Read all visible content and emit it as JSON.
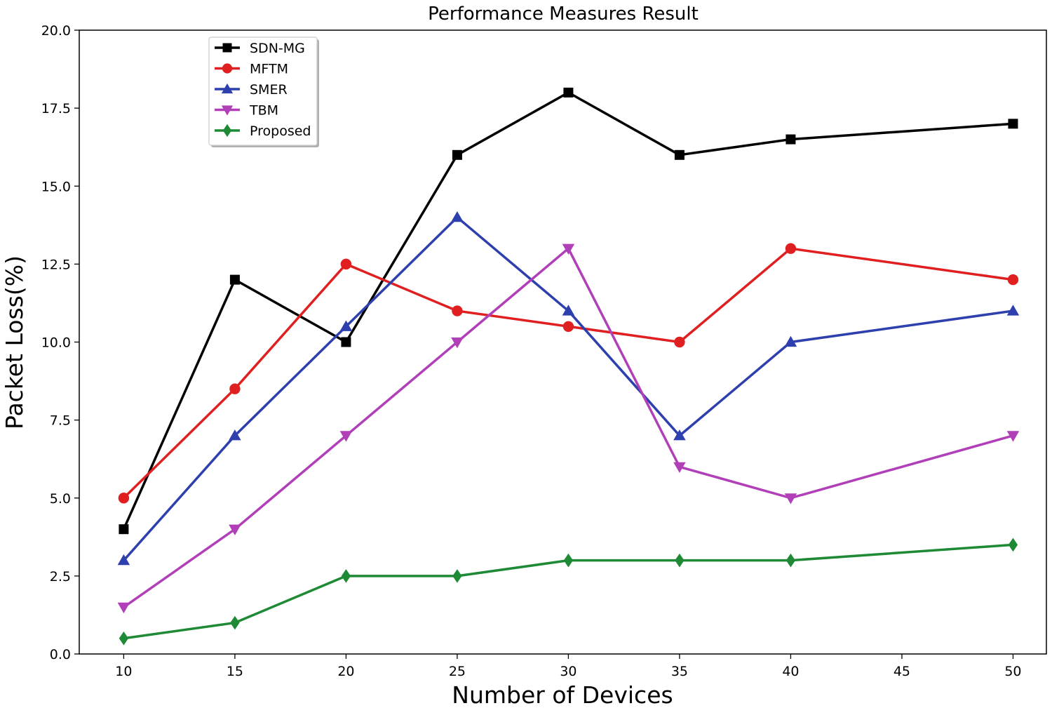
{
  "chart_data": {
    "type": "line",
    "title": "Performance Measures Result",
    "xlabel": "Number of Devices",
    "ylabel": "Packet Loss(%)",
    "xlim": [
      8,
      51.5
    ],
    "ylim": [
      0,
      20
    ],
    "x_ticks": [
      10,
      15,
      20,
      25,
      30,
      35,
      40,
      45,
      50
    ],
    "x_tick_labels": [
      "10",
      "15",
      "20",
      "25",
      "30",
      "35",
      "40",
      "45",
      "50"
    ],
    "y_ticks": [
      0,
      2.5,
      5,
      7.5,
      10,
      12.5,
      15,
      17.5,
      20
    ],
    "y_tick_labels": [
      "0.0",
      "2.5",
      "5.0",
      "7.5",
      "10.0",
      "12.5",
      "15.0",
      "17.5",
      "20.0"
    ],
    "grid": false,
    "legend_position": "top-left",
    "x": [
      10,
      15,
      20,
      25,
      30,
      35,
      40,
      50
    ],
    "series": [
      {
        "name": "SDN-MG",
        "color": "#000000",
        "marker": "square",
        "values": [
          4,
          12,
          10,
          16,
          18,
          16,
          16.5,
          17
        ]
      },
      {
        "name": "MFTM",
        "color": "#e02020",
        "marker": "circle",
        "values": [
          5,
          8.5,
          12.5,
          11,
          10.5,
          10,
          13,
          12
        ]
      },
      {
        "name": "SMER",
        "color": "#2e3fae",
        "marker": "triangle-up",
        "values": [
          3,
          7,
          10.5,
          14,
          11,
          7,
          10,
          11
        ]
      },
      {
        "name": "TBM",
        "color": "#b03fb8",
        "marker": "triangle-down",
        "values": [
          1.5,
          4,
          7,
          10,
          13,
          6,
          5,
          7
        ]
      },
      {
        "name": "Proposed",
        "color": "#1e8a35",
        "marker": "diamond",
        "values": [
          0.5,
          1,
          2.5,
          2.5,
          3,
          3,
          3,
          3.5
        ]
      }
    ]
  }
}
